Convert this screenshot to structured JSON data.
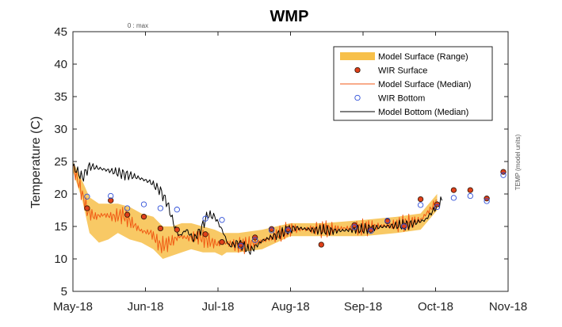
{
  "chart_data": {
    "type": "line",
    "title": "WMP",
    "top_note": "0 : max",
    "ylabel": "Temperature (C)",
    "right_label": "TEMP (model units)",
    "xlabel": "",
    "x_ticks": [
      "May-18",
      "Jun-18",
      "Jul-18",
      "Aug-18",
      "Sep-18",
      "Oct-18",
      "Nov-18"
    ],
    "xlim": [
      "2018-05-01",
      "2018-11-01"
    ],
    "ylim": [
      5,
      45
    ],
    "y_ticks": [
      5,
      10,
      15,
      20,
      25,
      30,
      35,
      40,
      45
    ],
    "grid": false,
    "legend_position": "top-right",
    "colors": {
      "range": "#F7C04A",
      "wir_surface_fill": "#E0401A",
      "wir_surface_edge": "#3a1a0a",
      "surface_median": "#F05A14",
      "wir_bottom": "#2E4FD8",
      "bottom_median": "#000000"
    },
    "series": [
      {
        "name": "Model Surface (Range)",
        "kind": "band",
        "x": [
          "2018-05-01",
          "2018-05-05",
          "2018-05-08",
          "2018-05-12",
          "2018-05-16",
          "2018-05-20",
          "2018-05-25",
          "2018-05-30",
          "2018-06-04",
          "2018-06-08",
          "2018-06-12",
          "2018-06-16",
          "2018-06-20",
          "2018-06-25",
          "2018-06-30",
          "2018-07-03",
          "2018-07-05",
          "2018-07-10",
          "2018-07-20",
          "2018-08-01",
          "2018-08-15",
          "2018-09-01",
          "2018-09-15",
          "2018-09-25",
          "2018-10-02"
        ],
        "low": [
          23.5,
          19.0,
          14.0,
          12.5,
          13.0,
          14.0,
          13.0,
          12.5,
          11.5,
          10.0,
          10.5,
          11.0,
          11.5,
          11.0,
          11.0,
          10.5,
          11.0,
          11.0,
          11.5,
          13.5,
          13.5,
          13.5,
          14.0,
          14.5,
          17.5
        ],
        "high": [
          25.0,
          22.0,
          19.5,
          18.5,
          18.5,
          18.5,
          18.0,
          17.0,
          16.5,
          15.0,
          15.0,
          15.5,
          15.5,
          15.0,
          14.5,
          14.0,
          14.0,
          14.0,
          14.5,
          15.5,
          15.5,
          16.0,
          16.5,
          17.0,
          20.0
        ]
      },
      {
        "name": "WIR Surface",
        "kind": "markers",
        "x": [
          "2018-05-07",
          "2018-05-17",
          "2018-05-24",
          "2018-05-31",
          "2018-06-07",
          "2018-06-14",
          "2018-06-26",
          "2018-07-03",
          "2018-07-11",
          "2018-07-17",
          "2018-07-24",
          "2018-07-31",
          "2018-08-14",
          "2018-08-28",
          "2018-09-04",
          "2018-09-11",
          "2018-09-18",
          "2018-09-25",
          "2018-10-02",
          "2018-10-09",
          "2018-10-16",
          "2018-10-23",
          "2018-10-30"
        ],
        "y": [
          17.8,
          19.0,
          16.8,
          16.5,
          14.7,
          14.5,
          13.8,
          12.6,
          12.2,
          13.3,
          14.6,
          14.6,
          12.2,
          15.2,
          14.5,
          15.8,
          15.1,
          19.2,
          18.4,
          20.6,
          20.6,
          19.3,
          23.4
        ]
      },
      {
        "name": "Model Surface (Median)",
        "kind": "line",
        "x": [
          "2018-05-01",
          "2018-05-04",
          "2018-05-07",
          "2018-05-10",
          "2018-05-14",
          "2018-05-18",
          "2018-05-22",
          "2018-05-26",
          "2018-05-30",
          "2018-06-03",
          "2018-06-07",
          "2018-06-11",
          "2018-06-15",
          "2018-06-19",
          "2018-06-23",
          "2018-06-27",
          "2018-07-01",
          "2018-07-05",
          "2018-07-10",
          "2018-07-20",
          "2018-08-01",
          "2018-08-15",
          "2018-09-01",
          "2018-09-15",
          "2018-09-25",
          "2018-10-02"
        ],
        "y": [
          24.3,
          21.0,
          17.5,
          16.5,
          16.8,
          16.5,
          16.8,
          15.5,
          14.3,
          14.0,
          12.0,
          12.5,
          13.5,
          13.2,
          13.5,
          12.8,
          12.3,
          12.5,
          12.0,
          12.7,
          14.6,
          14.6,
          14.8,
          15.3,
          16.0,
          18.8
        ]
      },
      {
        "name": "WIR Bottom",
        "kind": "markers",
        "x": [
          "2018-05-07",
          "2018-05-17",
          "2018-05-24",
          "2018-05-31",
          "2018-06-07",
          "2018-06-14",
          "2018-06-26",
          "2018-07-03",
          "2018-07-11",
          "2018-07-17",
          "2018-07-24",
          "2018-07-31",
          "2018-08-28",
          "2018-09-04",
          "2018-09-11",
          "2018-09-18",
          "2018-09-25",
          "2018-10-02",
          "2018-10-09",
          "2018-10-16",
          "2018-10-23",
          "2018-10-30"
        ],
        "y": [
          19.6,
          19.7,
          17.8,
          18.4,
          17.8,
          17.6,
          16.2,
          16.0,
          12.0,
          12.9,
          14.4,
          14.4,
          14.9,
          14.3,
          15.9,
          15.0,
          18.3,
          18.0,
          19.4,
          19.7,
          18.9,
          22.9
        ]
      },
      {
        "name": "Model Bottom (Median)",
        "kind": "line",
        "x": [
          "2018-05-01",
          "2018-05-05",
          "2018-05-08",
          "2018-05-14",
          "2018-05-20",
          "2018-05-28",
          "2018-06-03",
          "2018-06-07",
          "2018-06-10",
          "2018-06-13",
          "2018-06-15",
          "2018-06-18",
          "2018-06-21",
          "2018-06-24",
          "2018-06-27",
          "2018-06-30",
          "2018-07-03",
          "2018-07-06",
          "2018-07-10",
          "2018-07-15",
          "2018-07-20",
          "2018-07-27",
          "2018-08-03",
          "2018-08-10",
          "2018-08-20",
          "2018-09-01",
          "2018-09-10",
          "2018-09-20",
          "2018-09-27",
          "2018-10-04"
        ],
        "y": [
          24.3,
          22.5,
          24.3,
          23.8,
          23.3,
          22.6,
          21.8,
          20.5,
          18.5,
          15.0,
          13.5,
          14.5,
          13.0,
          14.5,
          16.8,
          16.5,
          14.5,
          12.0,
          12.5,
          11.2,
          12.8,
          13.8,
          14.8,
          14.5,
          14.3,
          14.6,
          15.0,
          15.3,
          16.0,
          19.0
        ]
      }
    ]
  }
}
